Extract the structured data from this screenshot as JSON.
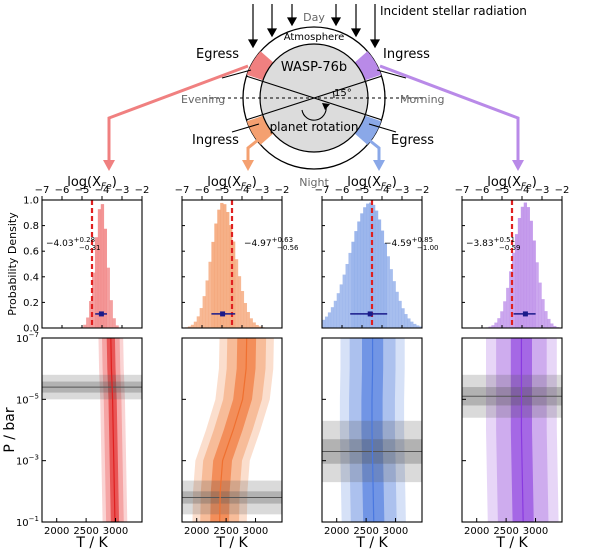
{
  "diagram": {
    "incident_label": "Incident stellar radiation",
    "day_label": "Day",
    "night_label": "Night",
    "evening_label": "Evening",
    "morning_label": "Morning",
    "atmosphere_label": "Atmosphere",
    "planet_label": "WASP-76b",
    "rotation_label": "planet rotation",
    "angle_label": "15°",
    "egress_left": "Egress",
    "ingress_right": "Ingress",
    "ingress_left_bottom": "Ingress",
    "egress_right_bottom": "Egress"
  },
  "colors": {
    "red": "#f08080",
    "orange": "#f4a070",
    "blue": "#8aa8e8",
    "purple": "#b98ae8",
    "red_dark": "#e02020",
    "orange_dark": "#f07030",
    "blue_dark": "#4a78e0",
    "purple_dark": "#8a3ae0",
    "ref_line": "#e02020",
    "median_marker": "#1a1a8a"
  },
  "axes": {
    "top_xlabel": "log(X",
    "top_xlabel_sub": "Fe",
    "top_xlabel_close": ")",
    "top_xticks": [
      "−7",
      "−6",
      "−5",
      "−4",
      "−3",
      "−2"
    ],
    "top_xlim": [
      -7,
      -2
    ],
    "ylabel_hist": "Probability Density",
    "yticks_hist": [
      "0.0",
      "0.2",
      "0.4",
      "0.6",
      "0.8",
      "1.0"
    ],
    "ylabel_pt": "P / bar",
    "yticks_pt": [
      {
        "base": "10",
        "exp": "−7",
        "logp": -7
      },
      {
        "base": "10",
        "exp": "−5",
        "logp": -5
      },
      {
        "base": "10",
        "exp": "−3",
        "logp": -3
      },
      {
        "base": "10",
        "exp": "−1",
        "logp": -1
      }
    ],
    "xlabel_pt": "T / K",
    "xticks_pt": [
      "2000",
      "2500",
      "3000"
    ],
    "xlim_pt": [
      1750,
      3450
    ],
    "logp_lim": [
      -7,
      -1
    ]
  },
  "reference_logX": -4.5,
  "chart_data": [
    {
      "type": "histogram",
      "color_key": "red",
      "annotation_value": "−4.03",
      "annotation_plus": "+0.28",
      "annotation_minus": "−0.31",
      "median": -4.03,
      "err_plus": 0.28,
      "err_minus": 0.31,
      "xlim": [
        -7,
        -2
      ],
      "ylim": [
        0,
        1
      ]
    },
    {
      "type": "histogram",
      "color_key": "orange",
      "annotation_value": "−4.97",
      "annotation_plus": "+0.63",
      "annotation_minus": "−0.56",
      "median": -4.97,
      "err_plus": 0.63,
      "err_minus": 0.56,
      "xlim": [
        -7,
        -2
      ],
      "ylim": [
        0,
        1
      ]
    },
    {
      "type": "histogram",
      "color_key": "blue",
      "annotation_value": "−4.59",
      "annotation_plus": "+0.85",
      "annotation_minus": "−1.00",
      "median": -4.59,
      "err_plus": 0.85,
      "err_minus": 1.0,
      "xlim": [
        -7,
        -2
      ],
      "ylim": [
        0,
        1
      ]
    },
    {
      "type": "histogram",
      "color_key": "purple",
      "annotation_value": "−3.83",
      "annotation_plus": "+0.51",
      "annotation_minus": "−0.59",
      "median": -3.83,
      "err_plus": 0.51,
      "err_minus": 0.59,
      "xlim": [
        -7,
        -2
      ],
      "ylim": [
        0,
        1
      ]
    },
    {
      "type": "pt_profile",
      "color_key": "red",
      "median_profile": [
        [
          2920,
          -7
        ],
        [
          2930,
          -6
        ],
        [
          2950,
          -5
        ],
        [
          2960,
          -4
        ],
        [
          2970,
          -3
        ],
        [
          2980,
          -2
        ],
        [
          2990,
          -1
        ]
      ],
      "sigma1_halfwidth_K": 70,
      "sigma2_halfwidth_K": 150,
      "contribution_band": {
        "center_logp": -5.4,
        "halfwidth1": 0.18,
        "halfwidth2": 0.4
      }
    },
    {
      "type": "pt_profile",
      "color_key": "orange",
      "median_profile": [
        [
          2850,
          -7
        ],
        [
          2840,
          -6
        ],
        [
          2780,
          -5
        ],
        [
          2620,
          -4
        ],
        [
          2440,
          -3
        ],
        [
          2400,
          -2
        ],
        [
          2390,
          -1
        ]
      ],
      "sigma1_halfwidth_K": 160,
      "sigma2_halfwidth_K": 330,
      "contribution_band": {
        "center_logp": -1.8,
        "halfwidth1": 0.2,
        "halfwidth2": 0.55
      }
    },
    {
      "type": "pt_profile",
      "color_key": "blue",
      "median_profile": [
        [
          2610,
          -7
        ],
        [
          2610,
          -6
        ],
        [
          2600,
          -5
        ],
        [
          2600,
          -4
        ],
        [
          2610,
          -3
        ],
        [
          2620,
          -2
        ],
        [
          2630,
          -1
        ]
      ],
      "sigma1_halfwidth_K": 180,
      "sigma2_halfwidth_K": 390,
      "contribution_band": {
        "center_logp": -3.3,
        "halfwidth1": 0.4,
        "halfwidth2": 1.0
      }
    },
    {
      "type": "pt_profile",
      "color_key": "purple",
      "median_profile": [
        [
          2760,
          -7
        ],
        [
          2760,
          -6
        ],
        [
          2760,
          -5
        ],
        [
          2760,
          -4
        ],
        [
          2770,
          -3
        ],
        [
          2780,
          -2
        ],
        [
          2790,
          -1
        ]
      ],
      "sigma1_halfwidth_K": 180,
      "sigma2_halfwidth_K": 430,
      "contribution_band": {
        "center_logp": -5.1,
        "halfwidth1": 0.3,
        "halfwidth2": 0.7
      }
    }
  ]
}
